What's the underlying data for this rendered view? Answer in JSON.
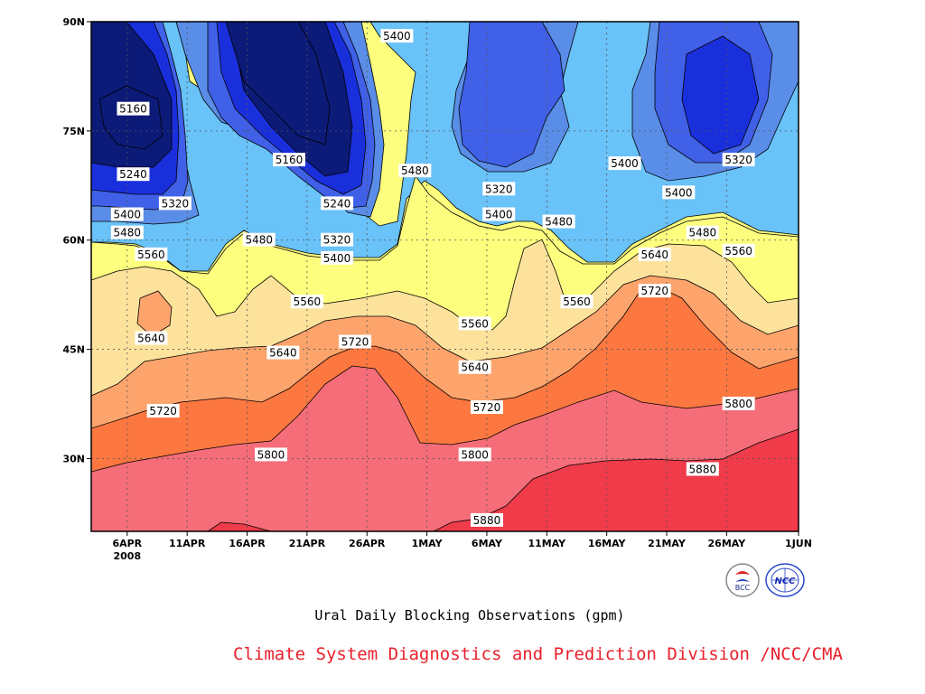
{
  "chart_data": {
    "type": "contour",
    "title": "Ural Daily Blocking Observations (gpm)",
    "credit": "Climate System Diagnostics and Prediction Division /NCC/CMA",
    "credit_color": "#e8202c",
    "x_ticks": [
      "6APR",
      "11APR",
      "16APR",
      "21APR",
      "26APR",
      "1MAY",
      "6MAY",
      "11MAY",
      "16MAY",
      "21MAY",
      "26MAY",
      "1JUN"
    ],
    "x_tick_days": [
      5,
      10,
      15,
      20,
      25,
      30,
      35,
      40,
      45,
      50,
      55,
      61
    ],
    "x_sublabel": "2008",
    "y_ticks": [
      "30N",
      "45N",
      "60N",
      "75N",
      "90N"
    ],
    "y_tick_values": [
      30,
      45,
      60,
      75,
      90
    ],
    "xlim_days": [
      2,
      61
    ],
    "ylim_lat": [
      20,
      90
    ],
    "grid": true,
    "levels": [
      5160,
      5240,
      5320,
      5400,
      5480,
      5560,
      5640,
      5720,
      5800,
      5880
    ],
    "colors": [
      "#0c1a78",
      "#1a2fdc",
      "#4060e8",
      "#5a8de8",
      "#69c2f8",
      "#fdfd7e",
      "#fde29c",
      "#fca46c",
      "#fc7840",
      "#f56d78",
      "#ef3b4a"
    ],
    "contour_labels": [
      {
        "text": "5160",
        "day": 5.5,
        "lat": 78.0
      },
      {
        "text": "5240",
        "day": 5.5,
        "lat": 69.0
      },
      {
        "text": "5320",
        "day": 9.0,
        "lat": 65.0
      },
      {
        "text": "5400",
        "day": 5.0,
        "lat": 63.5
      },
      {
        "text": "5480",
        "day": 5.0,
        "lat": 61.0
      },
      {
        "text": "5560",
        "day": 7.0,
        "lat": 58.0
      },
      {
        "text": "5640",
        "day": 7.0,
        "lat": 46.5
      },
      {
        "text": "5720",
        "day": 8.0,
        "lat": 36.5
      },
      {
        "text": "5160",
        "day": 18.5,
        "lat": 71.0
      },
      {
        "text": "5480",
        "day": 16.0,
        "lat": 60.0
      },
      {
        "text": "5240",
        "day": 22.5,
        "lat": 65.0
      },
      {
        "text": "5320",
        "day": 22.5,
        "lat": 60.0
      },
      {
        "text": "5400",
        "day": 22.5,
        "lat": 57.5
      },
      {
        "text": "5560",
        "day": 20.0,
        "lat": 51.5
      },
      {
        "text": "5640",
        "day": 18.0,
        "lat": 44.5
      },
      {
        "text": "5720",
        "day": 24.0,
        "lat": 46.0
      },
      {
        "text": "5800",
        "day": 17.0,
        "lat": 30.5
      },
      {
        "text": "5400",
        "day": 27.5,
        "lat": 88.0
      },
      {
        "text": "5480",
        "day": 29.0,
        "lat": 69.5
      },
      {
        "text": "5320",
        "day": 36.0,
        "lat": 67.0
      },
      {
        "text": "5400",
        "day": 36.0,
        "lat": 63.5
      },
      {
        "text": "5480",
        "day": 41.0,
        "lat": 62.5
      },
      {
        "text": "5560",
        "day": 34.0,
        "lat": 48.5
      },
      {
        "text": "5640",
        "day": 34.0,
        "lat": 42.5
      },
      {
        "text": "5720",
        "day": 35.0,
        "lat": 37.0
      },
      {
        "text": "5800",
        "day": 34.0,
        "lat": 30.5
      },
      {
        "text": "5880",
        "day": 35.0,
        "lat": 21.5
      },
      {
        "text": "5560",
        "day": 42.5,
        "lat": 51.5
      },
      {
        "text": "5400",
        "day": 46.5,
        "lat": 70.5
      },
      {
        "text": "5400",
        "day": 51.0,
        "lat": 66.5
      },
      {
        "text": "5320",
        "day": 56.0,
        "lat": 71.0
      },
      {
        "text": "5480",
        "day": 53.0,
        "lat": 61.0
      },
      {
        "text": "5640",
        "day": 49.0,
        "lat": 58.0
      },
      {
        "text": "5560",
        "day": 56.0,
        "lat": 58.5
      },
      {
        "text": "5720",
        "day": 49.0,
        "lat": 53.0
      },
      {
        "text": "5800",
        "day": 56.0,
        "lat": 37.5
      },
      {
        "text": "5880",
        "day": 53.0,
        "lat": 28.5
      }
    ]
  },
  "logos": {
    "left_text": "BCC",
    "right_text": "NCC"
  }
}
